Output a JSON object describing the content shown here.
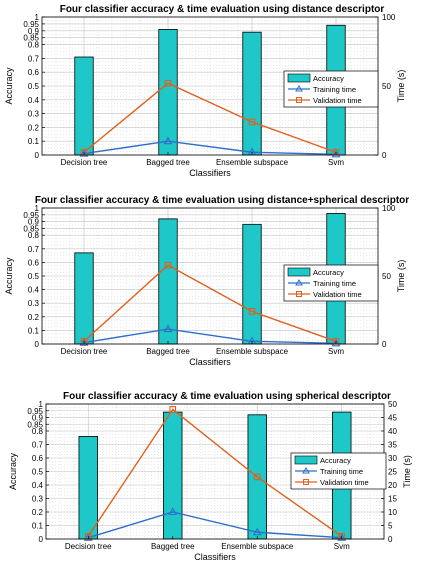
{
  "chart_data": [
    {
      "type": "bar",
      "title": "Four classifier accuracy & time evaluation using distance descriptor",
      "xlabel": "Classifiers",
      "ylabel": "Accuracy",
      "y2label": "Time (s)",
      "categories": [
        "Decision tree",
        "Bagged tree",
        "Ensemble subspace",
        "Svm"
      ],
      "ylim": [
        0,
        1
      ],
      "y2lim": [
        0,
        100
      ],
      "yticks": [
        "0",
        "0.1",
        "0.2",
        "0.3",
        "0.4",
        "0.5",
        "0.6",
        "0.7",
        "0.8",
        "0.85",
        "0.9",
        "0.95",
        "1"
      ],
      "y2ticks": [
        "0",
        "50",
        "100"
      ],
      "grid": true,
      "legend": "right",
      "series": [
        {
          "name": "Accuracy",
          "kind": "bar",
          "axis": "left",
          "values": [
            0.71,
            0.91,
            0.89,
            0.94
          ],
          "color": "#1ec8c8"
        },
        {
          "name": "Training time",
          "kind": "line",
          "axis": "right",
          "marker": "triangle",
          "values": [
            1,
            10,
            2,
            0.5
          ],
          "color": "#2f6fc8"
        },
        {
          "name": "Validation time",
          "kind": "line",
          "axis": "right",
          "marker": "square",
          "values": [
            2,
            52,
            24,
            2
          ],
          "color": "#e0601e"
        }
      ]
    },
    {
      "type": "bar",
      "title": "Four classifier accuracy & time evaluation using distance+spherical descriptor",
      "xlabel": "Classifiers",
      "ylabel": "Accuracy",
      "y2label": "Time (s)",
      "categories": [
        "Decision tree",
        "Bagged tree",
        "Ensemble subspace",
        "Svm"
      ],
      "ylim": [
        0,
        1
      ],
      "y2lim": [
        0,
        100
      ],
      "yticks": [
        "0",
        "0.1",
        "0.2",
        "0.3",
        "0.4",
        "0.5",
        "0.6",
        "0.7",
        "0.8",
        "0.85",
        "0.9",
        "0.95",
        "1"
      ],
      "y2ticks": [
        "0",
        "50",
        "100"
      ],
      "grid": true,
      "legend": "right",
      "series": [
        {
          "name": "Accuracy",
          "kind": "bar",
          "axis": "left",
          "values": [
            0.67,
            0.92,
            0.88,
            0.96
          ],
          "color": "#1ec8c8"
        },
        {
          "name": "Training time",
          "kind": "line",
          "axis": "right",
          "marker": "triangle",
          "values": [
            1,
            11,
            2,
            0.5
          ],
          "color": "#2f6fc8"
        },
        {
          "name": "Validation time",
          "kind": "line",
          "axis": "right",
          "marker": "square",
          "values": [
            2,
            58,
            24,
            2
          ],
          "color": "#e0601e"
        }
      ]
    },
    {
      "type": "bar",
      "title": "Four classifier accuracy & time evaluation using spherical descriptor",
      "xlabel": "Classifiers",
      "ylabel": "Accuracy",
      "y2label": "Time (s)",
      "categories": [
        "Decision tree",
        "Bagged tree",
        "Ensemble subspace",
        "Svm"
      ],
      "ylim": [
        0,
        1
      ],
      "y2lim": [
        0,
        50
      ],
      "yticks": [
        "0",
        "0.1",
        "0.2",
        "0.3",
        "0.4",
        "0.5",
        "0.6",
        "0.7",
        "0.8",
        "0.85",
        "0.9",
        "0.95",
        "1"
      ],
      "y2ticks": [
        "0",
        "5",
        "10",
        "15",
        "20",
        "25",
        "30",
        "35",
        "40",
        "45",
        "50"
      ],
      "grid": true,
      "legend": "right",
      "series": [
        {
          "name": "Accuracy",
          "kind": "bar",
          "axis": "left",
          "values": [
            0.76,
            0.94,
            0.92,
            0.94
          ],
          "color": "#1ec8c8"
        },
        {
          "name": "Training time",
          "kind": "line",
          "axis": "right",
          "marker": "triangle",
          "values": [
            0.5,
            10,
            2.5,
            0.5
          ],
          "color": "#2f6fc8"
        },
        {
          "name": "Validation time",
          "kind": "line",
          "axis": "right",
          "marker": "square",
          "values": [
            1,
            48,
            23,
            1
          ],
          "color": "#e0601e"
        }
      ]
    }
  ]
}
